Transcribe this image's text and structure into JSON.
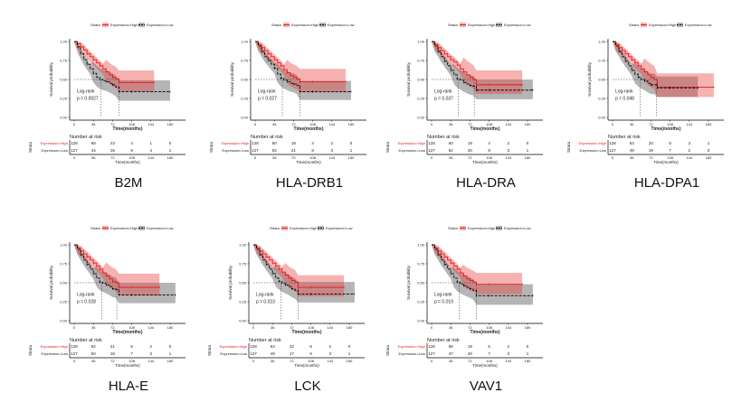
{
  "chart_data": [
    {
      "type": "line",
      "subtype": "kaplan-meier",
      "gene": "B2M",
      "xlabel": "Time(months)",
      "ylabel": "Survival probability",
      "xticks": [
        0,
        36,
        72,
        108,
        144,
        180
      ],
      "yticks": [
        "0.00",
        "0.25",
        "0.50",
        "0.75",
        "1.00"
      ],
      "xlim": [
        0,
        180
      ],
      "ylim": [
        0,
        1
      ],
      "legend": {
        "title": "Strata",
        "items": [
          "Expression=High",
          "Expression=Low"
        ],
        "position": "top"
      },
      "test": "Log-rank",
      "pvalue": "p = 0.0027",
      "median": {
        "high": 84,
        "low": 50
      },
      "series": [
        {
          "name": "Expression=High",
          "color": "#e41a1c",
          "x": [
            0,
            6,
            12,
            18,
            24,
            30,
            36,
            42,
            48,
            54,
            60,
            66,
            72,
            78,
            84,
            90,
            108,
            144,
            150
          ],
          "y": [
            1.0,
            0.97,
            0.93,
            0.89,
            0.84,
            0.8,
            0.76,
            0.72,
            0.68,
            0.64,
            0.6,
            0.56,
            0.53,
            0.51,
            0.46,
            0.46,
            0.46,
            0.46,
            0.46
          ],
          "ci_upper": 0.62,
          "ci_lower": 0.34
        },
        {
          "name": "Expression=Low",
          "color": "#000000",
          "x": [
            0,
            6,
            12,
            18,
            24,
            30,
            36,
            42,
            48,
            54,
            60,
            66,
            72,
            78,
            84,
            90,
            108,
            144,
            180
          ],
          "y": [
            1.0,
            0.93,
            0.84,
            0.76,
            0.7,
            0.64,
            0.58,
            0.53,
            0.5,
            0.48,
            0.47,
            0.45,
            0.43,
            0.4,
            0.34,
            0.34,
            0.34,
            0.34,
            0.34
          ],
          "ci_upper": 0.49,
          "ci_lower": 0.22
        }
      ],
      "risk_table": {
        "title": "Number at risk",
        "strata_label": "Strata",
        "high": [
          128,
          68,
          23,
          4,
          1,
          0
        ],
        "low": [
          127,
          44,
          16,
          8,
          4,
          1
        ]
      }
    },
    {
      "type": "line",
      "subtype": "kaplan-meier",
      "gene": "HLA-DRB1",
      "xlabel": "Time(months)",
      "ylabel": "Survival probability",
      "xticks": [
        0,
        36,
        72,
        108,
        144,
        180
      ],
      "yticks": [
        "0.00",
        "0.25",
        "0.50",
        "0.75",
        "1.00"
      ],
      "xlim": [
        0,
        180
      ],
      "ylim": [
        0,
        1
      ],
      "legend": {
        "title": "Strata",
        "items": [
          "Expression=High",
          "Expression=Low"
        ],
        "position": "top"
      },
      "test": "Log-rank",
      "pvalue": "p = 0.027",
      "median": {
        "high": 84,
        "low": 51
      },
      "series": [
        {
          "name": "Expression=High",
          "color": "#e41a1c",
          "x": [
            0,
            6,
            12,
            18,
            24,
            30,
            36,
            42,
            48,
            54,
            60,
            66,
            72,
            78,
            84,
            90,
            108,
            144,
            170
          ],
          "y": [
            1.0,
            0.96,
            0.92,
            0.88,
            0.84,
            0.8,
            0.76,
            0.72,
            0.68,
            0.63,
            0.59,
            0.55,
            0.53,
            0.51,
            0.47,
            0.47,
            0.47,
            0.47,
            0.47
          ],
          "ci_upper": 0.64,
          "ci_lower": 0.33
        },
        {
          "name": "Expression=Low",
          "color": "#000000",
          "x": [
            0,
            6,
            12,
            18,
            24,
            30,
            36,
            42,
            48,
            54,
            60,
            66,
            72,
            78,
            84,
            90,
            108,
            144,
            180
          ],
          "y": [
            1.0,
            0.94,
            0.87,
            0.8,
            0.75,
            0.7,
            0.65,
            0.57,
            0.52,
            0.49,
            0.47,
            0.45,
            0.44,
            0.42,
            0.34,
            0.34,
            0.34,
            0.34,
            0.34
          ],
          "ci_upper": 0.48,
          "ci_lower": 0.23
        }
      ],
      "risk_table": {
        "title": "Number at risk",
        "strata_label": "Strata",
        "high": [
          128,
          60,
          18,
          4,
          2,
          0
        ],
        "low": [
          127,
          52,
          21,
          8,
          3,
          1
        ]
      }
    },
    {
      "type": "line",
      "subtype": "kaplan-meier",
      "gene": "HLA-DRA",
      "xlabel": "Time(months)",
      "ylabel": "Survival probability",
      "xticks": [
        0,
        36,
        72,
        108,
        144,
        180
      ],
      "yticks": [
        "0.00",
        "0.25",
        "0.50",
        "0.75",
        "1.00"
      ],
      "xlim": [
        0,
        180
      ],
      "ylim": [
        0,
        1
      ],
      "legend": {
        "title": "Strata",
        "items": [
          "Expression=High",
          "Expression=Low"
        ],
        "position": "top"
      },
      "test": "Log-rank",
      "pvalue": "p = 0.037",
      "median": {
        "high": 80,
        "low": 50
      },
      "series": [
        {
          "name": "Expression=High",
          "color": "#e41a1c",
          "x": [
            0,
            6,
            12,
            18,
            24,
            30,
            36,
            42,
            48,
            54,
            60,
            66,
            72,
            78,
            84,
            90,
            108,
            144,
            170
          ],
          "y": [
            1.0,
            0.96,
            0.92,
            0.88,
            0.84,
            0.8,
            0.76,
            0.73,
            0.69,
            0.64,
            0.6,
            0.56,
            0.53,
            0.5,
            0.43,
            0.43,
            0.43,
            0.43,
            0.43
          ],
          "ci_upper": 0.62,
          "ci_lower": 0.31
        },
        {
          "name": "Expression=Low",
          "color": "#000000",
          "x": [
            0,
            6,
            12,
            18,
            24,
            30,
            36,
            42,
            48,
            54,
            60,
            66,
            72,
            78,
            84,
            90,
            108,
            144,
            190
          ],
          "y": [
            1.0,
            0.94,
            0.87,
            0.8,
            0.74,
            0.68,
            0.62,
            0.56,
            0.51,
            0.49,
            0.46,
            0.44,
            0.42,
            0.41,
            0.36,
            0.36,
            0.36,
            0.36,
            0.36
          ],
          "ci_upper": 0.5,
          "ci_lower": 0.24
        }
      ],
      "risk_table": {
        "title": "Number at risk",
        "strata_label": "Strata",
        "high": [
          128,
          60,
          19,
          4,
          2,
          0
        ],
        "low": [
          127,
          52,
          20,
          8,
          3,
          1
        ]
      }
    },
    {
      "type": "line",
      "subtype": "kaplan-meier",
      "gene": "HLA-DPA1",
      "xlabel": "Time(months)",
      "ylabel": "Survival probability",
      "xticks": [
        0,
        36,
        72,
        108,
        144,
        180
      ],
      "yticks": [
        "0.00",
        "0.25",
        "0.50",
        "0.75",
        "1.00"
      ],
      "xlim": [
        0,
        180
      ],
      "ylim": [
        0,
        1
      ],
      "legend": {
        "title": "Strata",
        "items": [
          "Expression=High",
          "Expression=Low"
        ],
        "position": "top"
      },
      "test": "Log-rank",
      "pvalue": "p = 0.048",
      "median": {
        "high": 82,
        "low": 52
      },
      "series": [
        {
          "name": "Expression=High",
          "color": "#e41a1c",
          "x": [
            0,
            6,
            12,
            18,
            24,
            30,
            36,
            42,
            48,
            54,
            60,
            66,
            72,
            78,
            84,
            90,
            108,
            144,
            190
          ],
          "y": [
            1.0,
            0.96,
            0.92,
            0.88,
            0.84,
            0.8,
            0.76,
            0.72,
            0.68,
            0.64,
            0.6,
            0.56,
            0.53,
            0.5,
            0.4,
            0.4,
            0.4,
            0.4,
            0.4
          ],
          "ci_upper": 0.58,
          "ci_lower": 0.27
        },
        {
          "name": "Expression=Low",
          "color": "#000000",
          "x": [
            0,
            6,
            12,
            18,
            24,
            30,
            36,
            42,
            48,
            54,
            60,
            66,
            72,
            78,
            84,
            90,
            108,
            144,
            160
          ],
          "y": [
            1.0,
            0.94,
            0.87,
            0.8,
            0.74,
            0.68,
            0.62,
            0.57,
            0.53,
            0.5,
            0.48,
            0.45,
            0.43,
            0.43,
            0.39,
            0.39,
            0.39,
            0.39,
            0.39
          ],
          "ci_upper": 0.54,
          "ci_lower": 0.27
        }
      ],
      "risk_table": {
        "title": "Number at risk",
        "strata_label": "Strata",
        "high": [
          128,
          63,
          20,
          5,
          3,
          1
        ],
        "low": [
          127,
          49,
          19,
          7,
          2,
          0
        ]
      }
    },
    {
      "type": "line",
      "subtype": "kaplan-meier",
      "gene": "HLA-E",
      "xlabel": "Time(months)",
      "ylabel": "Survival probability",
      "xticks": [
        0,
        36,
        72,
        108,
        144,
        180
      ],
      "yticks": [
        "0.00",
        "0.25",
        "0.50",
        "0.75",
        "1.00"
      ],
      "xlim": [
        0,
        180
      ],
      "ylim": [
        0,
        1
      ],
      "legend": {
        "title": "Strata",
        "items": [
          "Expression=High",
          "Expression=Low"
        ],
        "position": "top"
      },
      "test": "Log-rank",
      "pvalue": "p = 0.028",
      "median": {
        "high": 80,
        "low": 52
      },
      "series": [
        {
          "name": "Expression=High",
          "color": "#e41a1c",
          "x": [
            0,
            6,
            12,
            18,
            24,
            30,
            36,
            42,
            48,
            54,
            60,
            66,
            72,
            78,
            84,
            90,
            108,
            144,
            160
          ],
          "y": [
            1.0,
            0.96,
            0.92,
            0.88,
            0.84,
            0.8,
            0.76,
            0.72,
            0.68,
            0.63,
            0.59,
            0.55,
            0.52,
            0.5,
            0.44,
            0.44,
            0.44,
            0.44,
            0.44
          ],
          "ci_upper": 0.62,
          "ci_lower": 0.33
        },
        {
          "name": "Expression=Low",
          "color": "#000000",
          "x": [
            0,
            6,
            12,
            18,
            24,
            30,
            36,
            42,
            48,
            54,
            60,
            66,
            72,
            78,
            84,
            90,
            108,
            144,
            190
          ],
          "y": [
            1.0,
            0.94,
            0.87,
            0.8,
            0.74,
            0.68,
            0.62,
            0.56,
            0.51,
            0.49,
            0.47,
            0.45,
            0.42,
            0.41,
            0.34,
            0.34,
            0.34,
            0.34,
            0.34
          ],
          "ci_upper": 0.5,
          "ci_lower": 0.23
        }
      ],
      "risk_table": {
        "title": "Number at risk",
        "strata_label": "Strata",
        "high": [
          128,
          62,
          21,
          5,
          2,
          0
        ],
        "low": [
          127,
          50,
          18,
          7,
          3,
          1
        ]
      }
    },
    {
      "type": "line",
      "subtype": "kaplan-meier",
      "gene": "LCK",
      "xlabel": "Time(months)",
      "ylabel": "Survival probability",
      "xticks": [
        0,
        36,
        72,
        108,
        144,
        180
      ],
      "yticks": [
        "0.00",
        "0.25",
        "0.50",
        "0.75",
        "1.00"
      ],
      "xlim": [
        0,
        180
      ],
      "ylim": [
        0,
        1
      ],
      "legend": {
        "title": "Strata",
        "items": [
          "Expression=High",
          "Expression=Low"
        ],
        "position": "top"
      },
      "test": "Log-rank",
      "pvalue": "p = 0.023",
      "median": {
        "high": 84,
        "low": 52
      },
      "series": [
        {
          "name": "Expression=High",
          "color": "#e41a1c",
          "x": [
            0,
            6,
            12,
            18,
            24,
            30,
            36,
            42,
            48,
            54,
            60,
            66,
            72,
            78,
            84,
            90,
            108,
            144,
            170
          ],
          "y": [
            1.0,
            0.96,
            0.92,
            0.88,
            0.84,
            0.8,
            0.76,
            0.72,
            0.68,
            0.64,
            0.6,
            0.56,
            0.53,
            0.51,
            0.44,
            0.44,
            0.44,
            0.44,
            0.44
          ],
          "ci_upper": 0.6,
          "ci_lower": 0.32
        },
        {
          "name": "Expression=Low",
          "color": "#000000",
          "x": [
            0,
            6,
            12,
            18,
            24,
            30,
            36,
            42,
            48,
            54,
            60,
            66,
            72,
            78,
            84,
            90,
            108,
            144,
            190
          ],
          "y": [
            1.0,
            0.94,
            0.87,
            0.8,
            0.74,
            0.68,
            0.62,
            0.56,
            0.52,
            0.49,
            0.47,
            0.45,
            0.42,
            0.4,
            0.35,
            0.35,
            0.35,
            0.35,
            0.35
          ],
          "ci_upper": 0.51,
          "ci_lower": 0.24
        }
      ],
      "risk_table": {
        "title": "Number at risk",
        "strata_label": "Strata",
        "high": [
          128,
          63,
          22,
          6,
          2,
          0
        ],
        "low": [
          127,
          49,
          17,
          6,
          3,
          1
        ]
      }
    },
    {
      "type": "line",
      "subtype": "kaplan-meier",
      "gene": "VAV1",
      "xlabel": "Time(months)",
      "ylabel": "Survival probability",
      "xticks": [
        0,
        36,
        72,
        108,
        144,
        180
      ],
      "yticks": [
        "0.00",
        "0.25",
        "0.50",
        "0.75",
        "1.00"
      ],
      "xlim": [
        0,
        180
      ],
      "ylim": [
        0,
        1
      ],
      "legend": {
        "title": "Strata",
        "items": [
          "Expression=High",
          "Expression=Low"
        ],
        "position": "top"
      },
      "test": "Log-rank",
      "pvalue": "p = 0.019",
      "median": {
        "high": 84,
        "low": 52
      },
      "series": [
        {
          "name": "Expression=High",
          "color": "#e41a1c",
          "x": [
            0,
            6,
            12,
            18,
            24,
            30,
            36,
            42,
            48,
            54,
            60,
            66,
            72,
            78,
            84,
            90,
            108,
            144,
            170
          ],
          "y": [
            1.0,
            0.96,
            0.92,
            0.88,
            0.84,
            0.8,
            0.76,
            0.72,
            0.68,
            0.63,
            0.59,
            0.55,
            0.53,
            0.51,
            0.48,
            0.48,
            0.48,
            0.48,
            0.48
          ],
          "ci_upper": 0.63,
          "ci_lower": 0.35
        },
        {
          "name": "Expression=Low",
          "color": "#000000",
          "x": [
            0,
            6,
            12,
            18,
            24,
            30,
            36,
            42,
            48,
            54,
            60,
            66,
            72,
            78,
            84,
            90,
            108,
            144,
            190
          ],
          "y": [
            1.0,
            0.94,
            0.87,
            0.8,
            0.74,
            0.68,
            0.62,
            0.56,
            0.51,
            0.48,
            0.46,
            0.44,
            0.42,
            0.4,
            0.33,
            0.33,
            0.33,
            0.33,
            0.33
          ],
          "ci_upper": 0.48,
          "ci_lower": 0.21
        }
      ],
      "risk_table": {
        "title": "Number at risk",
        "strata_label": "Strata",
        "high": [
          128,
          66,
          19,
          5,
          2,
          0
        ],
        "low": [
          127,
          47,
          20,
          7,
          3,
          1
        ]
      }
    }
  ]
}
